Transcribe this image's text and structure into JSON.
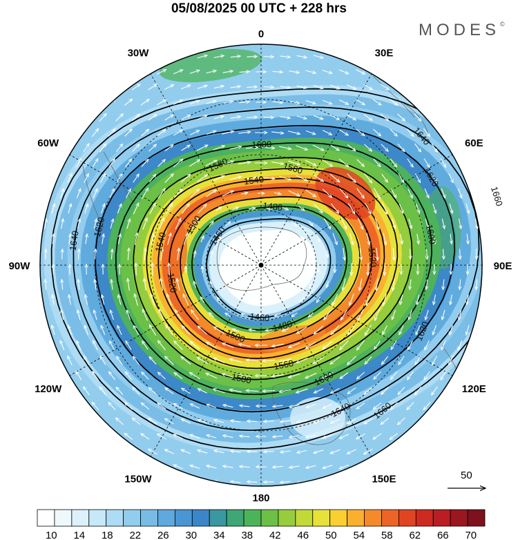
{
  "title": "05/08/2025  00 UTC  + 228 hrs",
  "brand": "MODES",
  "brand_mark": "©",
  "longitude_labels": [
    {
      "text": "0",
      "lon": 0
    },
    {
      "text": "30E",
      "lon": 30
    },
    {
      "text": "60E",
      "lon": 60
    },
    {
      "text": "90E",
      "lon": 90
    },
    {
      "text": "120E",
      "lon": 120
    },
    {
      "text": "150E",
      "lon": 150
    },
    {
      "text": "180",
      "lon": 180
    },
    {
      "text": "150W",
      "lon": -150
    },
    {
      "text": "120W",
      "lon": -120
    },
    {
      "text": "90W",
      "lon": -90
    },
    {
      "text": "60W",
      "lon": -60
    },
    {
      "text": "30W",
      "lon": -30
    }
  ],
  "contour_labels": [
    "1460",
    "1480",
    "1500",
    "1520",
    "1540",
    "1560",
    "1580",
    "1600",
    "1620",
    "1640",
    "1660"
  ],
  "vector_reference": "50",
  "colorbar": {
    "tick_labels": [
      "10",
      "14",
      "18",
      "22",
      "26",
      "30",
      "34",
      "38",
      "42",
      "46",
      "50",
      "54",
      "58",
      "62",
      "66",
      "70"
    ],
    "colors": [
      "#ffffff",
      "#eef8fd",
      "#dcf1fb",
      "#c6e8f8",
      "#aedcf4",
      "#93cdee",
      "#78bce6",
      "#5ea9dd",
      "#4a96d3",
      "#3b86c7",
      "#3a98a0",
      "#3fa676",
      "#4db35a",
      "#6cc046",
      "#96cd3d",
      "#c2d93a",
      "#e8e13a",
      "#f9cf34",
      "#f9b02e",
      "#f48a2a",
      "#ec6526",
      "#e04423",
      "#cd2a22",
      "#b81e22",
      "#9c1620",
      "#7d111c"
    ]
  }
}
